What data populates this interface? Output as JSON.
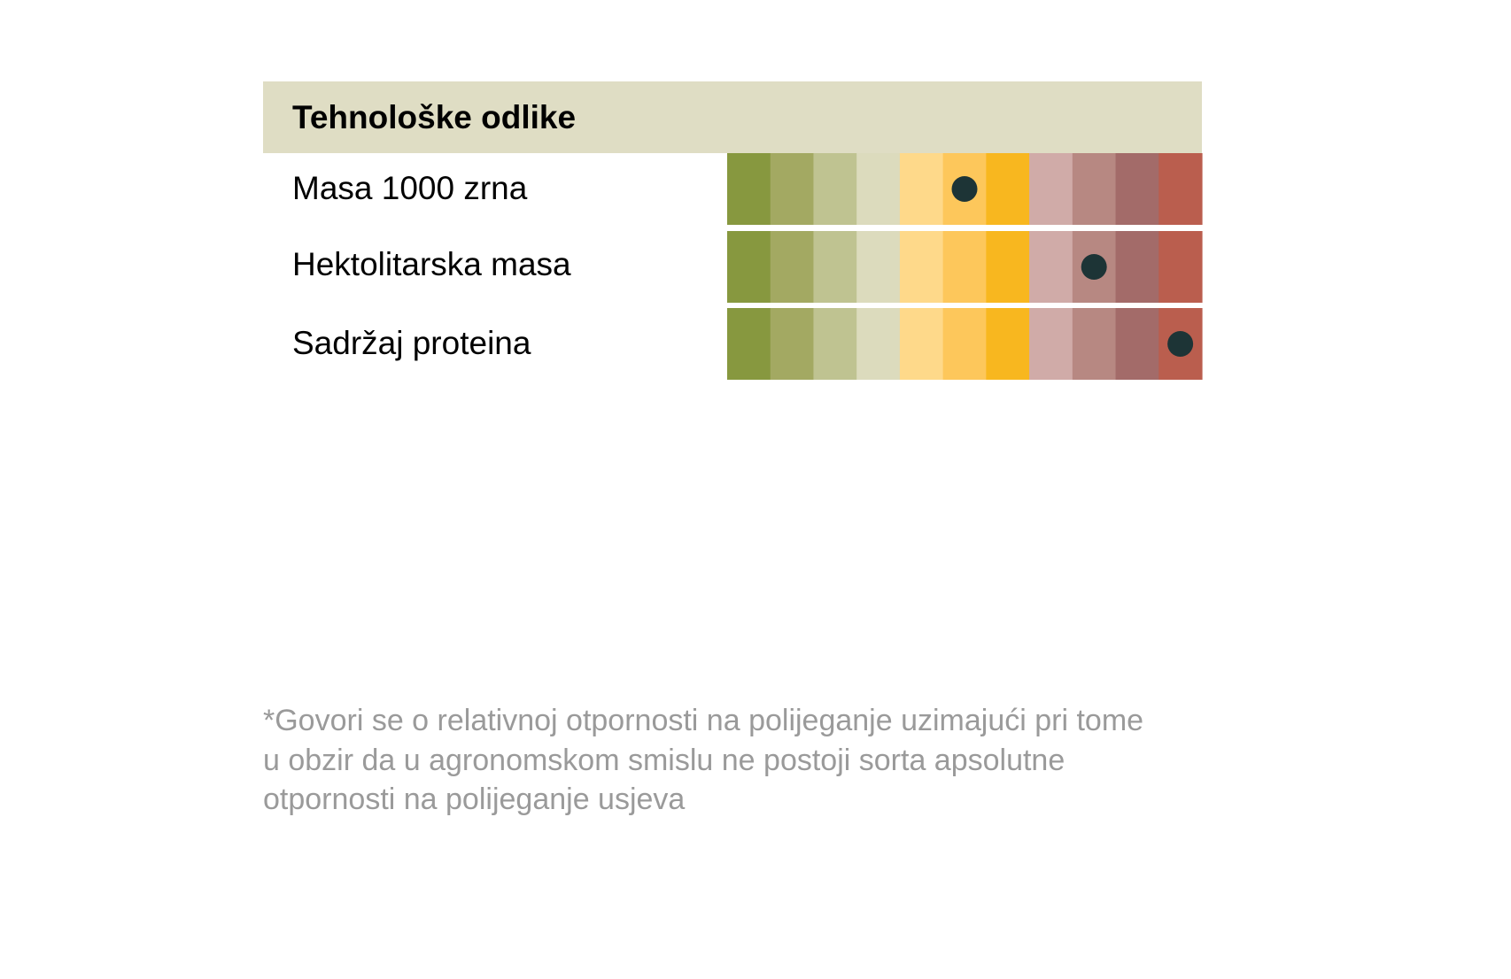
{
  "chart_data": {
    "type": "heatmap",
    "title": "Tehnološke odlike",
    "rows": [
      {
        "label": "Masa 1000 zrna",
        "value": 6
      },
      {
        "label": "Hektolitarska masa",
        "value": 9
      },
      {
        "label": "Sadržaj proteina",
        "value": 11
      }
    ],
    "scale_steps": 11,
    "scale_colors": [
      "#87983f",
      "#a3a962",
      "#bfc391",
      "#dcdbbd",
      "#fed98a",
      "#fdc75b",
      "#f8b71f",
      "#d0aba8",
      "#b78882",
      "#a36b69",
      "#ba5e4e"
    ],
    "marker_color": "#1d3436",
    "legend": "none",
    "grid": false
  },
  "footnote": {
    "lines": [
      "*Govori se o relativnoj otpornosti na polijeganje uzimajući pri tome",
      "u obzir da u agronomskom smislu ne postoji sorta apsolutne",
      "otpornosti na polijeganje usjeva"
    ]
  }
}
